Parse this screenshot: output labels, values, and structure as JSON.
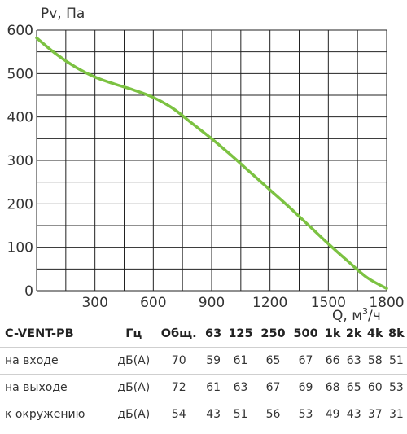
{
  "chart_data": {
    "type": "line",
    "xlabel_base": "Q, м",
    "xlabel_sup": "3",
    "xlabel_tail": "/ч",
    "ylabel": "Pv, Па",
    "xlim": [
      0,
      1800
    ],
    "ylim": [
      0,
      600
    ],
    "xticks": [
      0,
      300,
      600,
      900,
      1200,
      1500,
      1800
    ],
    "xtick_labels": [
      "300",
      "600",
      "900",
      "1200",
      "1500",
      "1800"
    ],
    "yticks": [
      0,
      100,
      200,
      300,
      400,
      500,
      600
    ],
    "ytick_labels": [
      "0",
      "100",
      "200",
      "300",
      "400",
      "500",
      "600"
    ],
    "grid": true,
    "line_color": "#7cc242",
    "grid_color": "#222222",
    "series": [
      {
        "x": [
          0,
          100,
          200,
          300,
          400,
          500,
          600,
          700,
          800,
          900,
          1000,
          1100,
          1200,
          1300,
          1400,
          1500,
          1600,
          1700,
          1800
        ],
        "y": [
          582,
          545,
          515,
          492,
          476,
          462,
          445,
          420,
          385,
          350,
          312,
          272,
          232,
          192,
          150,
          108,
          68,
          30,
          5
        ]
      }
    ]
  },
  "table": {
    "headers": [
      "C-VENT-PB",
      "Гц",
      "Общ.",
      "63",
      "125",
      "250",
      "500",
      "1k",
      "2k",
      "4k",
      "8k"
    ],
    "rows": [
      [
        "на входе",
        "дБ(А)",
        "70",
        "59",
        "61",
        "65",
        "67",
        "66",
        "63",
        "58",
        "51"
      ],
      [
        "на выходе",
        "дБ(А)",
        "72",
        "61",
        "63",
        "67",
        "69",
        "68",
        "65",
        "60",
        "53"
      ],
      [
        "к окружению",
        "дБ(А)",
        "54",
        "43",
        "51",
        "56",
        "53",
        "49",
        "43",
        "37",
        "31"
      ]
    ]
  }
}
